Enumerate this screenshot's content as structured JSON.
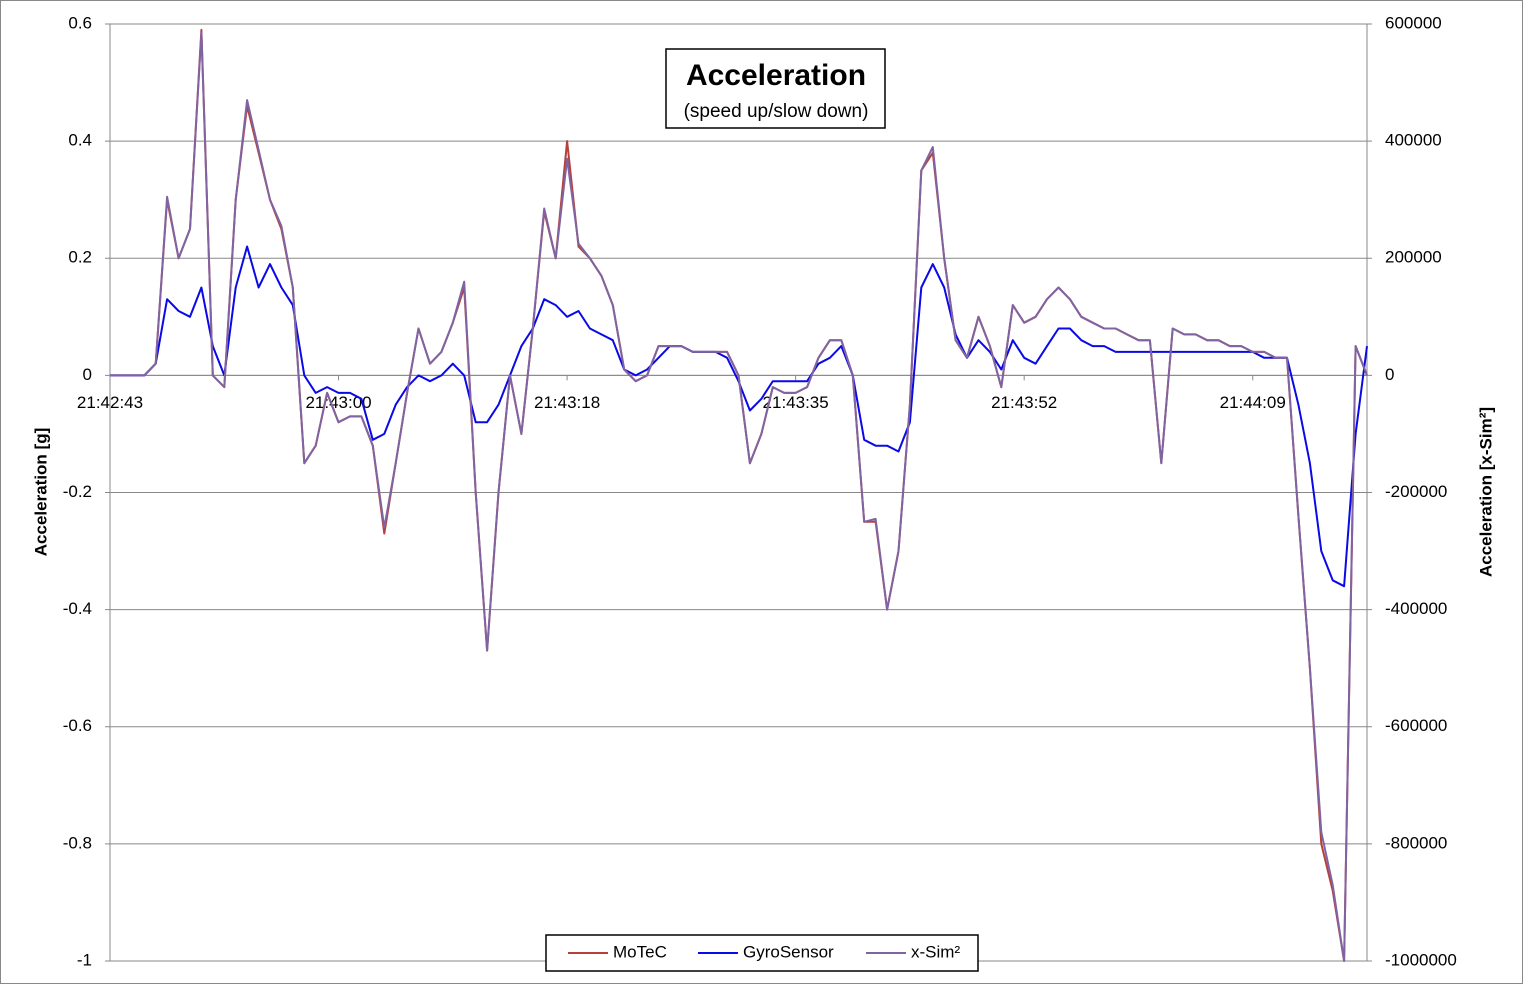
{
  "chart_data": {
    "type": "line",
    "title": "Acceleration",
    "subtitle": "(speed up/slow down)",
    "y_label": "Acceleration [g]",
    "y2_label": "Acceleration [x-Sim²]",
    "categories": [
      "21:42:43",
      null,
      null,
      null,
      null,
      null,
      null,
      null,
      null,
      null,
      null,
      null,
      null,
      null,
      null,
      null,
      null,
      null,
      null,
      null,
      "21:43:00",
      null,
      null,
      null,
      null,
      null,
      null,
      null,
      null,
      null,
      null,
      null,
      null,
      null,
      null,
      null,
      null,
      null,
      null,
      null,
      "21:43:18",
      null,
      null,
      null,
      null,
      null,
      null,
      null,
      null,
      null,
      null,
      null,
      null,
      null,
      null,
      null,
      null,
      null,
      null,
      null,
      "21:43:35",
      null,
      null,
      null,
      null,
      null,
      null,
      null,
      null,
      null,
      null,
      null,
      null,
      null,
      null,
      null,
      null,
      null,
      null,
      null,
      "21:43:52",
      null,
      null,
      null,
      null,
      null,
      null,
      null,
      null,
      null,
      null,
      null,
      null,
      null,
      null,
      null,
      null,
      null,
      null,
      null,
      "21:44:09",
      null,
      null,
      null,
      null,
      null,
      null,
      null,
      null,
      null,
      null
    ],
    "ylim": [
      -1,
      0.6
    ],
    "yticks": [
      -1,
      -0.8,
      -0.6,
      -0.4,
      -0.2,
      0,
      0.2,
      0.4,
      0.6
    ],
    "y2lim": [
      -1000000,
      600000
    ],
    "y2ticks": [
      -1000000,
      -800000,
      -600000,
      -400000,
      -200000,
      0,
      200000,
      400000,
      600000
    ],
    "grid": true,
    "legend": "bottom",
    "series": [
      {
        "name": "MoTeC",
        "color": "#b5413a",
        "values": [
          0,
          0,
          0,
          0,
          0.02,
          0.3,
          0.2,
          0.25,
          0.59,
          0,
          -0.02,
          0.3,
          0.46,
          0.38,
          0.3,
          0.25,
          0.15,
          -0.15,
          -0.12,
          -0.03,
          -0.08,
          -0.07,
          -0.07,
          -0.12,
          -0.27,
          -0.15,
          -0.03,
          0.08,
          0.02,
          0.04,
          0.09,
          0.15,
          -0.2,
          -0.47,
          -0.2,
          0,
          -0.1,
          0.08,
          0.28,
          0.2,
          0.4,
          0.22,
          0.2,
          0.17,
          0.12,
          0.01,
          -0.01,
          0,
          0.05,
          0.05,
          0.05,
          0.04,
          0.04,
          0.04,
          0.04,
          0,
          -0.15,
          -0.1,
          -0.02,
          -0.03,
          -0.03,
          -0.02,
          0.03,
          0.06,
          0.06,
          0,
          -0.25,
          -0.25,
          -0.4,
          -0.3,
          -0.05,
          0.35,
          0.38,
          0.2,
          0.06,
          0.03,
          0.1,
          0.05,
          -0.02,
          0.12,
          0.09,
          0.1,
          0.13,
          0.15,
          0.13,
          0.1,
          0.09,
          0.08,
          0.08,
          0.07,
          0.06,
          0.06,
          -0.15,
          0.08,
          0.07,
          0.07,
          0.06,
          0.06,
          0.05,
          0.05,
          0.04,
          0.04,
          0.03,
          0.03,
          -0.24,
          -0.5,
          -0.8,
          -0.88,
          -1,
          0.05,
          0
        ]
      },
      {
        "name": "GyroSensor",
        "color": "#0a0ae6",
        "values": [
          0,
          0,
          0,
          0,
          0.02,
          0.13,
          0.11,
          0.1,
          0.15,
          0.05,
          0,
          0.15,
          0.22,
          0.15,
          0.19,
          0.15,
          0.12,
          0,
          -0.03,
          -0.02,
          -0.03,
          -0.03,
          -0.04,
          -0.11,
          -0.1,
          -0.05,
          -0.02,
          0,
          -0.01,
          0,
          0.02,
          0,
          -0.08,
          -0.08,
          -0.05,
          0,
          0.05,
          0.08,
          0.13,
          0.12,
          0.1,
          0.11,
          0.08,
          0.07,
          0.06,
          0.01,
          0,
          0.01,
          0.03,
          0.05,
          0.05,
          0.04,
          0.04,
          0.04,
          0.03,
          -0.01,
          -0.06,
          -0.04,
          -0.01,
          -0.01,
          -0.01,
          -0.01,
          0.02,
          0.03,
          0.05,
          0,
          -0.11,
          -0.12,
          -0.12,
          -0.13,
          -0.08,
          0.15,
          0.19,
          0.15,
          0.07,
          0.03,
          0.06,
          0.04,
          0.01,
          0.06,
          0.03,
          0.02,
          0.05,
          0.08,
          0.08,
          0.06,
          0.05,
          0.05,
          0.04,
          0.04,
          0.04,
          0.04,
          0.04,
          0.04,
          0.04,
          0.04,
          0.04,
          0.04,
          0.04,
          0.04,
          0.04,
          0.03,
          0.03,
          0.03,
          -0.05,
          -0.15,
          -0.3,
          -0.35,
          -0.36,
          -0.1,
          0.05
        ]
      },
      {
        "name": "x-Sim²",
        "color": "#8064a2",
        "axis": "y2",
        "values": [
          0,
          0,
          0,
          0,
          20000,
          305000,
          200000,
          250000,
          585000,
          0,
          -20000,
          300000,
          470000,
          385000,
          300000,
          255000,
          150000,
          -150000,
          -120000,
          -30000,
          -80000,
          -70000,
          -70000,
          -120000,
          -260000,
          -150000,
          -30000,
          80000,
          20000,
          40000,
          90000,
          160000,
          -200000,
          -470000,
          -200000,
          0,
          -100000,
          80000,
          285000,
          200000,
          370000,
          225000,
          200000,
          170000,
          120000,
          10000,
          -10000,
          0,
          50000,
          50000,
          50000,
          40000,
          40000,
          40000,
          40000,
          0,
          -150000,
          -100000,
          -20000,
          -30000,
          -30000,
          -20000,
          30000,
          60000,
          60000,
          0,
          -250000,
          -245000,
          -400000,
          -300000,
          -50000,
          350000,
          390000,
          200000,
          60000,
          30000,
          100000,
          50000,
          -20000,
          120000,
          90000,
          100000,
          130000,
          150000,
          130000,
          100000,
          90000,
          80000,
          80000,
          70000,
          60000,
          60000,
          -150000,
          80000,
          70000,
          70000,
          60000,
          60000,
          50000,
          50000,
          40000,
          40000,
          30000,
          30000,
          -240000,
          -500000,
          -780000,
          -870000,
          -1000000,
          50000,
          0
        ]
      }
    ]
  }
}
